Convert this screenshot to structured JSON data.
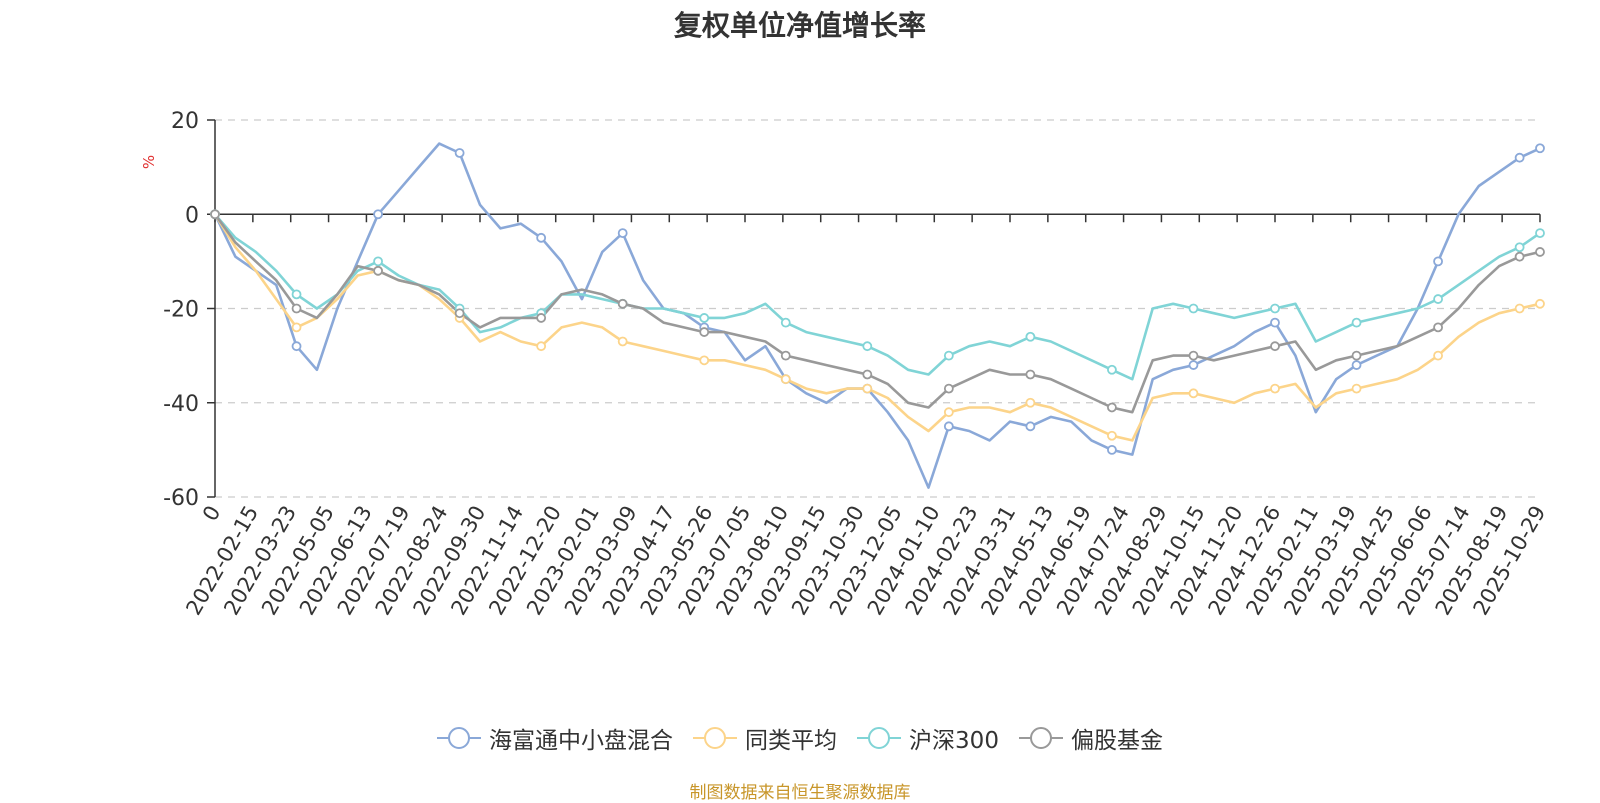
{
  "chart_data": {
    "type": "line",
    "title": "复权单位净值增长率",
    "ylabel": "%",
    "xlabel": "",
    "ylim": [
      -60,
      20
    ],
    "yticks": [
      20,
      0,
      -20,
      -40,
      -60
    ],
    "grid": true,
    "legend_position": "bottom",
    "x_tick_labels": [
      "0",
      "2022-02-15",
      "2022-03-23",
      "2022-05-05",
      "2022-06-13",
      "2022-07-19",
      "2022-08-24",
      "2022-09-30",
      "2022-11-14",
      "2022-12-20",
      "2023-02-01",
      "2023-03-09",
      "2023-04-17",
      "2023-05-26",
      "2023-07-05",
      "2023-08-10",
      "2023-09-15",
      "2023-10-30",
      "2023-12-05",
      "2024-01-10",
      "2024-02-23",
      "2024-03-31",
      "2024-05-13",
      "2024-06-19",
      "2024-07-24",
      "2024-08-29",
      "2024-10-15",
      "2024-11-20",
      "2024-12-26",
      "2025-02-11",
      "2025-03-19",
      "2025-04-25",
      "2025-06-06",
      "2025-07-14",
      "2025-08-19",
      "2025-10-29"
    ],
    "series": [
      {
        "name": "海富通中小盘混合",
        "color": "#8aa8d8",
        "values": [
          0,
          -9,
          -12,
          -15,
          -28,
          -33,
          -20,
          -10,
          0,
          5,
          10,
          15,
          13,
          2,
          -3,
          -2,
          -5,
          -10,
          -18,
          -8,
          -4,
          -14,
          -20,
          -21,
          -24,
          -25,
          -31,
          -28,
          -35,
          -38,
          -40,
          -37,
          -37,
          -42,
          -48,
          -58,
          -45,
          -46,
          -48,
          -44,
          -45,
          -43,
          -44,
          -48,
          -50,
          -51,
          -35,
          -33,
          -32,
          -30,
          -28,
          -25,
          -23,
          -30,
          -42,
          -35,
          -32,
          -30,
          -28,
          -20,
          -10,
          0,
          6,
          9,
          12,
          14
        ]
      },
      {
        "name": "同类平均",
        "color": "#fcd48a",
        "values": [
          0,
          -7,
          -12,
          -18,
          -24,
          -22,
          -18,
          -13,
          -12,
          -14,
          -15,
          -18,
          -22,
          -27,
          -25,
          -27,
          -28,
          -24,
          -23,
          -24,
          -27,
          -28,
          -29,
          -30,
          -31,
          -31,
          -32,
          -33,
          -35,
          -37,
          -38,
          -37,
          -37,
          -39,
          -43,
          -46,
          -42,
          -41,
          -41,
          -42,
          -40,
          -41,
          -43,
          -45,
          -47,
          -48,
          -39,
          -38,
          -38,
          -39,
          -40,
          -38,
          -37,
          -36,
          -41,
          -38,
          -37,
          -36,
          -35,
          -33,
          -30,
          -26,
          -23,
          -21,
          -20,
          -19
        ]
      },
      {
        "name": "沪深300",
        "color": "#80d4d6",
        "values": [
          0,
          -5,
          -8,
          -12,
          -17,
          -20,
          -17,
          -12,
          -10,
          -13,
          -15,
          -16,
          -20,
          -25,
          -24,
          -22,
          -21,
          -17,
          -17,
          -18,
          -19,
          -20,
          -20,
          -21,
          -22,
          -22,
          -21,
          -19,
          -23,
          -25,
          -26,
          -27,
          -28,
          -30,
          -33,
          -34,
          -30,
          -28,
          -27,
          -28,
          -26,
          -27,
          -29,
          -31,
          -33,
          -35,
          -20,
          -19,
          -20,
          -21,
          -22,
          -21,
          -20,
          -19,
          -27,
          -25,
          -23,
          -22,
          -21,
          -20,
          -18,
          -15,
          -12,
          -9,
          -7,
          -4
        ]
      },
      {
        "name": "偏股基金",
        "color": "#999999",
        "values": [
          0,
          -6,
          -10,
          -14,
          -20,
          -22,
          -17,
          -11,
          -12,
          -14,
          -15,
          -17,
          -21,
          -24,
          -22,
          -22,
          -22,
          -17,
          -16,
          -17,
          -19,
          -20,
          -23,
          -24,
          -25,
          -25,
          -26,
          -27,
          -30,
          -31,
          -32,
          -33,
          -34,
          -36,
          -40,
          -41,
          -37,
          -35,
          -33,
          -34,
          -34,
          -35,
          -37,
          -39,
          -41,
          -42,
          -31,
          -30,
          -30,
          -31,
          -30,
          -29,
          -28,
          -27,
          -33,
          -31,
          -30,
          -29,
          -28,
          -26,
          -24,
          -20,
          -15,
          -11,
          -9,
          -8
        ]
      }
    ]
  },
  "legend": {
    "items": [
      "海富通中小盘混合",
      "同类平均",
      "沪深300",
      "偏股基金"
    ]
  },
  "footer": {
    "source": "制图数据来自恒生聚源数据库"
  }
}
